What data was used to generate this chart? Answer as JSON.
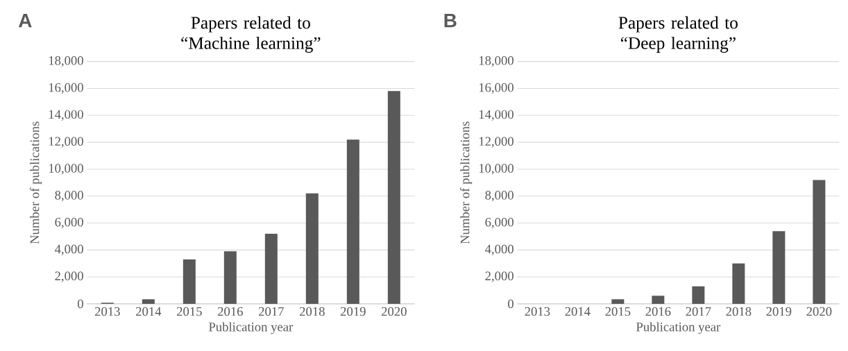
{
  "chart_data": [
    {
      "type": "bar",
      "title": "Papers related to “Machine learning”",
      "xlabel": "Publication year",
      "ylabel": "Number of publications",
      "annotations": [
        "A"
      ],
      "categories": [
        "2013",
        "2014",
        "2015",
        "2016",
        "2017",
        "2018",
        "2019",
        "2020"
      ],
      "values": [
        80,
        340,
        3300,
        3900,
        5200,
        8200,
        12200,
        15800
      ],
      "color": "#595959",
      "ylim": [
        0,
        18000
      ],
      "yticks": [
        {
          "value": 0,
          "label": "0"
        },
        {
          "value": 2000,
          "label": "2,000"
        },
        {
          "value": 4000,
          "label": "4,000"
        },
        {
          "value": 6000,
          "label": "6,000"
        },
        {
          "value": 8000,
          "label": "8,000"
        },
        {
          "value": 10000,
          "label": "10,000"
        },
        {
          "value": 12000,
          "label": "12,000"
        },
        {
          "value": 14000,
          "label": "14,000"
        },
        {
          "value": 16000,
          "label": "16,000"
        },
        {
          "value": 18000,
          "label": "18,000"
        }
      ],
      "grid": "y"
    },
    {
      "type": "bar",
      "title": "Papers related to “Deep learning”",
      "xlabel": "Publication year",
      "ylabel": "Number of publications",
      "annotations": [
        "B"
      ],
      "categories": [
        "2013",
        "2014",
        "2015",
        "2016",
        "2017",
        "2018",
        "2019",
        "2020"
      ],
      "values": [
        0,
        0,
        340,
        600,
        1300,
        3000,
        5400,
        9200
      ],
      "color": "#595959",
      "ylim": [
        0,
        18000
      ],
      "yticks": [
        {
          "value": 0,
          "label": "0"
        },
        {
          "value": 2000,
          "label": "2,000"
        },
        {
          "value": 4000,
          "label": "4,000"
        },
        {
          "value": 6000,
          "label": "6,000"
        },
        {
          "value": 8000,
          "label": "8,000"
        },
        {
          "value": 10000,
          "label": "10,000"
        },
        {
          "value": 12000,
          "label": "12,000"
        },
        {
          "value": 14000,
          "label": "14,000"
        },
        {
          "value": 16000,
          "label": "16,000"
        },
        {
          "value": 18000,
          "label": "18,000"
        }
      ],
      "grid": "y"
    }
  ]
}
